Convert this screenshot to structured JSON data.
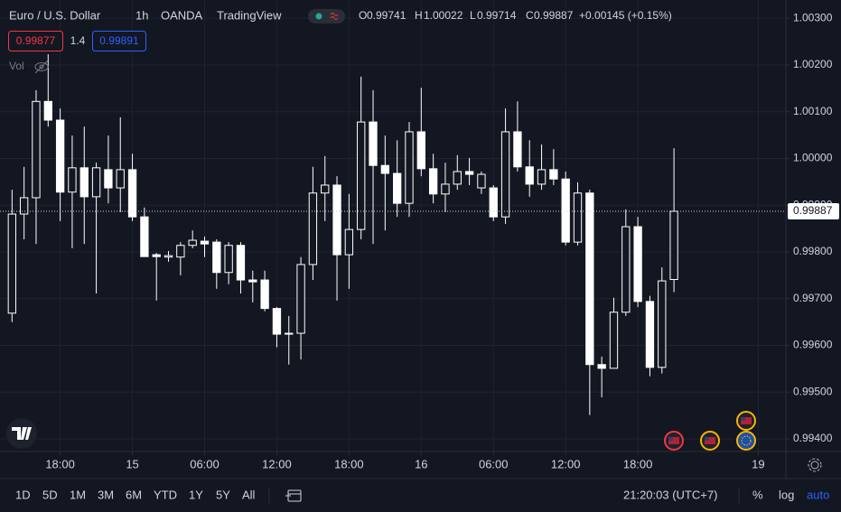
{
  "header": {
    "symbol": "Euro / U.S. Dollar",
    "interval": "1h",
    "source": "OANDA",
    "platform": "TradingView",
    "ohlc": [
      {
        "label": "O",
        "value": "0.99741"
      },
      {
        "label": "H",
        "value": "1.00022"
      },
      {
        "label": "L",
        "value": "0.99714"
      },
      {
        "label": "C",
        "value": "0.99887"
      }
    ],
    "change": "+0.00145 (+0.15%)",
    "bid": "0.99877",
    "spread": "1.4",
    "ask": "0.99891",
    "volume": "Vol"
  },
  "chart_data": {
    "type": "candlestick",
    "color": "#ffffff",
    "categories": [
      null,
      null,
      null,
      null,
      null,
      null,
      null,
      null,
      null,
      null,
      null,
      null,
      null,
      null,
      null,
      null,
      null,
      null,
      null,
      null,
      null,
      null,
      null,
      null,
      null,
      null,
      null,
      null,
      null,
      null,
      null,
      null,
      null,
      null,
      null,
      null,
      null,
      null,
      null,
      null,
      null,
      null,
      null,
      null,
      null,
      null,
      null,
      null,
      null,
      null,
      null,
      null,
      null,
      null,
      null,
      null
    ],
    "open": [
      0.99669,
      0.99881,
      0.99916,
      1.00122,
      1.00082,
      0.99928,
      0.9998,
      0.99918,
      0.99976,
      0.99937,
      0.99976,
      0.99875,
      0.99794,
      0.99789,
      0.99789,
      0.99814,
      0.99823,
      0.99821,
      0.99756,
      0.99814,
      0.9974,
      0.9974,
      0.99679,
      0.99624,
      0.99626,
      0.99773,
      0.99926,
      0.99943,
      0.99794,
      0.99848,
      1.00078,
      0.99985,
      0.99968,
      0.99904,
      1.00057,
      0.99978,
      0.99924,
      0.99945,
      0.99972,
      0.99937,
      0.99937,
      0.99875,
      1.00057,
      0.99982,
      0.99945,
      0.99976,
      0.99956,
      0.99821,
      0.99926,
      0.99559,
      0.99551,
      0.99671,
      0.99854,
      0.99694,
      0.99553,
      0.99741
    ],
    "high": [
      0.99933,
      0.99982,
      1.00146,
      1.00223,
      1.00107,
      1.00049,
      1.00068,
      0.99991,
      1.00049,
      1.00088,
      1.0001,
      0.99895,
      0.99798,
      0.99802,
      0.99821,
      0.99846,
      0.99833,
      0.99827,
      0.99821,
      0.99821,
      0.9976,
      0.9976,
      0.99682,
      0.99663,
      0.99789,
      0.99982,
      1.00005,
      0.99962,
      0.99924,
      1.00175,
      1.00146,
      1.00049,
      1.00039,
      1.00078,
      1.00151,
      1.0001,
      0.99991,
      1.00007,
      1.00001,
      0.99972,
      0.99943,
      1.00107,
      1.00122,
      1.00039,
      1.0003,
      1.0002,
      0.99972,
      0.99949,
      0.99933,
      0.99576,
      0.99702,
      0.99891,
      0.99875,
      0.99706,
      0.99767,
      1.00022
    ],
    "low": [
      0.9965,
      0.99827,
      0.99817,
      1.00068,
      0.99866,
      0.99808,
      0.99817,
      0.99711,
      0.99904,
      0.99885,
      0.99866,
      0.9979,
      0.99696,
      0.99779,
      0.9975,
      0.99808,
      0.99789,
      0.99721,
      0.99731,
      0.99711,
      0.99692,
      0.99673,
      0.99596,
      0.99559,
      0.9957,
      0.9974,
      0.99866,
      0.99696,
      0.99721,
      0.99827,
      0.99817,
      0.99846,
      0.99875,
      0.99875,
      0.99962,
      0.99904,
      0.99885,
      0.99933,
      0.99943,
      0.99924,
      0.99866,
      0.9986,
      0.99972,
      0.99918,
      0.99933,
      0.99943,
      0.99814,
      0.99814,
      0.99451,
      0.99489,
      0.99551,
      0.99663,
      0.99682,
      0.99534,
      0.9954,
      0.99714
    ],
    "close": [
      0.99881,
      0.99916,
      1.00122,
      1.00082,
      0.99928,
      0.9998,
      0.99918,
      0.9998,
      0.99937,
      0.99976,
      0.99875,
      0.9979,
      0.9979,
      0.99792,
      0.99814,
      0.99825,
      0.99817,
      0.99756,
      0.99814,
      0.9974,
      0.99736,
      0.99679,
      0.99624,
      0.99626,
      0.99773,
      0.99926,
      0.99943,
      0.99794,
      0.99848,
      1.00078,
      0.99985,
      0.99968,
      0.99904,
      1.00057,
      0.99978,
      0.99924,
      0.99945,
      0.99972,
      0.99966,
      0.99966,
      0.99875,
      1.00057,
      0.99982,
      0.99945,
      0.99976,
      0.99956,
      0.99821,
      0.99926,
      0.99559,
      0.99551,
      0.99671,
      0.99854,
      0.99694,
      0.99553,
      0.99738,
      0.99887
    ],
    "last_price": 0.99887,
    "xlim": [
      -1,
      64.3
    ],
    "xticks": [
      {
        "value": 4,
        "label": "18:00"
      },
      {
        "value": 10,
        "label": "15"
      },
      {
        "value": 16,
        "label": "06:00"
      },
      {
        "value": 22,
        "label": "12:00"
      },
      {
        "value": 28,
        "label": "18:00"
      },
      {
        "value": 34,
        "label": "16"
      },
      {
        "value": 40,
        "label": "06:00"
      },
      {
        "value": 46,
        "label": "12:00"
      },
      {
        "value": 52,
        "label": "18:00"
      },
      {
        "value": 62,
        "label": "19"
      }
    ],
    "ylim": [
      0.99373,
      1.00339
    ],
    "yticks": [
      {
        "value": 0.994,
        "label": "0.99400"
      },
      {
        "value": 0.995,
        "label": "0.99500"
      },
      {
        "value": 0.996,
        "label": "0.99600"
      },
      {
        "value": 0.997,
        "label": "0.99700"
      },
      {
        "value": 0.998,
        "label": "0.99800"
      },
      {
        "value": 0.999,
        "label": "0.99900"
      },
      {
        "value": 1.0,
        "label": "1.00000"
      },
      {
        "value": 1.001,
        "label": "1.00100"
      },
      {
        "value": 1.002,
        "label": "1.00200"
      },
      {
        "value": 1.003,
        "label": "1.00300"
      }
    ],
    "grid": true
  },
  "toolbar": {
    "ranges": [
      "1D",
      "5D",
      "1M",
      "3M",
      "6M",
      "YTD",
      "1Y",
      "5Y",
      "All"
    ],
    "clock": "21:20:03 (UTC+7)",
    "percent": "%",
    "log": "log",
    "auto": "auto"
  }
}
